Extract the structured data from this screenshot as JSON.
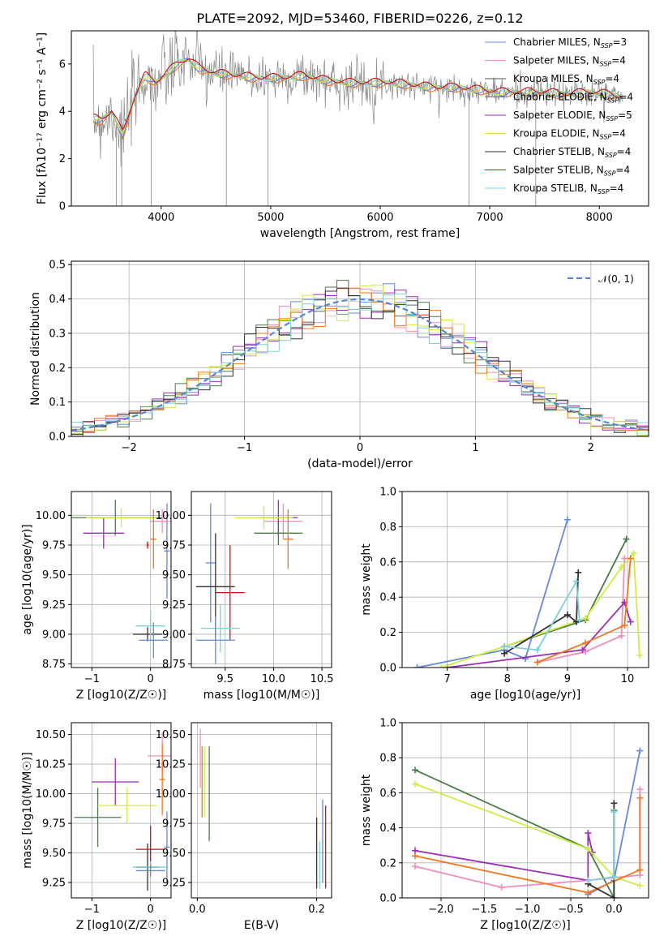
{
  "colors": [
    "#6688dd",
    "#ee8fbb",
    "#555555",
    "#4a7a4a",
    "#9b2eb5",
    "#ccee44",
    "#333333",
    "#cc1111",
    "#7fd0d8",
    "#ee7722"
  ],
  "chart_data": [
    {
      "id": "spectrum",
      "type": "line",
      "title": "PLATE=2092, MJD=53460, FIBERID=0226, z=0.12",
      "xlabel": "wavelength [Angstrom, rest frame]",
      "ylabel": "Flux [fλ10⁻¹⁷ erg cm⁻² s⁻¹ A⁻¹]",
      "xlim": [
        3180,
        8450
      ],
      "ylim": [
        0,
        7.4
      ],
      "xticks": [
        4000,
        5000,
        6000,
        7000,
        8000
      ],
      "yticks": [
        0,
        2,
        4,
        6
      ],
      "data_wavelength": [
        3380,
        3450,
        3550,
        3650,
        3750,
        3850,
        3950,
        4050,
        4150,
        4250,
        4350,
        4500,
        4700,
        4900,
        5100,
        5300,
        5500,
        5700,
        5900,
        6100,
        6300,
        6500,
        6700,
        6900,
        7100,
        7300,
        7500,
        7700,
        7900,
        8100,
        8200
      ],
      "data_flux": [
        3.7,
        3.6,
        4.0,
        3.0,
        4.5,
        5.5,
        5.2,
        5.6,
        6.0,
        6.2,
        5.8,
        5.6,
        5.5,
        5.4,
        5.4,
        5.5,
        5.3,
        5.2,
        5.2,
        5.2,
        5.1,
        5.0,
        5.0,
        4.9,
        4.8,
        4.8,
        4.8,
        4.7,
        4.8,
        4.7,
        4.6
      ],
      "models": [
        {
          "name": "Chabrier MILES, NSSP=3",
          "base": "Chabrier MILES, N",
          "sub": "SSP",
          "suffix": "=3"
        },
        {
          "name": "Salpeter MILES, NSSP=4",
          "base": "Salpeter MILES, N",
          "sub": "SSP",
          "suffix": "=4"
        },
        {
          "name": "Kroupa MILES, NSSP=4",
          "base": "Kroupa MILES, N",
          "sub": "SSP",
          "suffix": "=4"
        },
        {
          "name": "Chabrier ELODIE, NSSP=4",
          "base": "Chabrier ELODIE, N",
          "sub": "SSP",
          "suffix": "=4"
        },
        {
          "name": "Salpeter ELODIE, NSSP=5",
          "base": "Salpeter ELODIE, N",
          "sub": "SSP",
          "suffix": "=5"
        },
        {
          "name": "Kroupa ELODIE, NSSP=4",
          "base": "Kroupa ELODIE, N",
          "sub": "SSP",
          "suffix": "=4"
        },
        {
          "name": "Chabrier STELIB, NSSP=4",
          "base": "Chabrier STELIB, N",
          "sub": "SSP",
          "suffix": "=4"
        },
        {
          "name": "Salpeter STELIB, NSSP=4",
          "base": "Salpeter STELIB, N",
          "sub": "SSP",
          "suffix": "=4"
        },
        {
          "name": "Kroupa STELIB, NSSP=4",
          "base": "Kroupa STELIB, N",
          "sub": "SSP",
          "suffix": "=4"
        }
      ]
    },
    {
      "id": "residuals",
      "type": "histogram",
      "xlabel": "(data-model)/error",
      "ylabel": "Normed distribution",
      "xlim": [
        -2.5,
        2.5
      ],
      "ylim": [
        0,
        0.51
      ],
      "xticks": [
        -2,
        -1,
        0,
        1,
        2
      ],
      "yticks": [
        0.0,
        0.1,
        0.2,
        0.3,
        0.4,
        0.5
      ],
      "legend": "𝒩(0, 1)",
      "bin_width": 0.1
    },
    {
      "id": "z-vs-age",
      "type": "errorbar",
      "xlabel": "Z [log10(Z/Z☉)]",
      "ylabel": "age  [log10(age/yr)]",
      "xlim": [
        -1.35,
        0.35
      ],
      "ylim": [
        8.72,
        10.2
      ],
      "xticks": [
        -1,
        0
      ],
      "yticks": [
        8.75,
        9.0,
        9.25,
        9.5,
        9.75,
        10.0
      ],
      "points": [
        {
          "x": 0.28,
          "y": 9.7,
          "xerr": 0.05,
          "yerr": 0.4,
          "c": 0
        },
        {
          "x": 0.2,
          "y": 9.95,
          "xerr": 0.2,
          "yerr": 0.1,
          "c": 1
        },
        {
          "x": -0.6,
          "y": 9.98,
          "xerr": 0.8,
          "yerr": 0.15,
          "c": 3
        },
        {
          "x": -0.8,
          "y": 9.85,
          "xerr": 0.35,
          "yerr": 0.13,
          "c": 4
        },
        {
          "x": -0.5,
          "y": 9.98,
          "xerr": 0.6,
          "yerr": 0.08,
          "c": 5
        },
        {
          "x": 0.05,
          "y": 9.8,
          "xerr": 0.05,
          "yerr": 0.25,
          "c": 9
        },
        {
          "x": -0.05,
          "y": 9.0,
          "xerr": 0.25,
          "yerr": 0.06,
          "c": 6
        },
        {
          "x": -0.05,
          "y": 9.75,
          "xerr": 0.02,
          "yerr": 0.03,
          "c": 7
        },
        {
          "x": 0.0,
          "y": 9.07,
          "xerr": 0.25,
          "yerr": 0.13,
          "c": 8
        },
        {
          "x": 0.05,
          "y": 8.95,
          "xerr": 0.25,
          "yerr": 0.15,
          "c": 0
        }
      ]
    },
    {
      "id": "mass-vs-age",
      "type": "errorbar",
      "xlabel": "mass [log10(M/M☉)]",
      "ylabel": "",
      "xlim": [
        9.15,
        10.6
      ],
      "ylim": [
        8.72,
        10.2
      ],
      "xticks": [
        9.5,
        10.0,
        10.5
      ],
      "yticks": [
        8.75,
        9.0,
        9.25,
        9.5,
        9.75,
        10.0
      ],
      "points": [
        {
          "x": 9.35,
          "y": 9.6,
          "xerr": 0.05,
          "yerr": 0.5,
          "c": 0
        },
        {
          "x": 10.1,
          "y": 9.95,
          "xerr": 0.2,
          "yerr": 0.15,
          "c": 1
        },
        {
          "x": 10.05,
          "y": 9.85,
          "xerr": 0.25,
          "yerr": 0.1,
          "c": 3
        },
        {
          "x": 10.05,
          "y": 9.98,
          "xerr": 0.2,
          "yerr": 0.15,
          "c": 4
        },
        {
          "x": 9.9,
          "y": 9.98,
          "xerr": 0.3,
          "yerr": 0.1,
          "c": 5
        },
        {
          "x": 10.15,
          "y": 9.8,
          "xerr": 0.05,
          "yerr": 0.25,
          "c": 9
        },
        {
          "x": 9.4,
          "y": 9.4,
          "xerr": 0.2,
          "yerr": 0.45,
          "c": 6
        },
        {
          "x": 9.55,
          "y": 9.35,
          "xerr": 0.15,
          "yerr": 0.4,
          "c": 7
        },
        {
          "x": 9.45,
          "y": 9.05,
          "xerr": 0.2,
          "yerr": 0.2,
          "c": 8
        },
        {
          "x": 9.4,
          "y": 8.95,
          "xerr": 0.2,
          "yerr": 0.2,
          "c": 0
        }
      ]
    },
    {
      "id": "weight-vs-age",
      "type": "line",
      "xlabel": "age  [log10(age/yr)]",
      "ylabel": "mass weight",
      "xlim": [
        6.25,
        10.35
      ],
      "ylim": [
        0,
        1.0
      ],
      "xticks": [
        7,
        8,
        9,
        10
      ],
      "yticks": [
        0.0,
        0.2,
        0.4,
        0.6,
        0.8,
        1.0
      ],
      "series": [
        {
          "c": 0,
          "x": [
            6.5,
            7.95,
            8.3,
            9.0
          ],
          "y": [
            0.0,
            0.1,
            0.05,
            0.84
          ]
        },
        {
          "c": 1,
          "x": [
            8.5,
            9.3,
            9.9,
            9.95
          ],
          "y": [
            0.03,
            0.09,
            0.18,
            0.62
          ]
        },
        {
          "c": 3,
          "x": [
            7.95,
            9.3,
            9.98
          ],
          "y": [
            0.12,
            0.27,
            0.73
          ]
        },
        {
          "c": 4,
          "x": [
            7.0,
            9.25,
            9.95,
            10.05
          ],
          "y": [
            0.0,
            0.1,
            0.37,
            0.26
          ]
        },
        {
          "c": 5,
          "x": [
            6.9,
            7.95,
            9.3,
            9.9,
            10.1,
            10.2
          ],
          "y": [
            0.0,
            0.12,
            0.28,
            0.57,
            0.65,
            0.07
          ]
        },
        {
          "c": 9,
          "x": [
            8.5,
            9.3,
            9.95,
            10.05
          ],
          "y": [
            0.03,
            0.14,
            0.24,
            0.62
          ]
        },
        {
          "c": 6,
          "x": [
            7.95,
            9.0,
            9.15,
            9.18
          ],
          "y": [
            0.08,
            0.3,
            0.26,
            0.54
          ]
        },
        {
          "c": 8,
          "x": [
            7.95,
            8.5,
            9.15,
            9.2
          ],
          "y": [
            0.12,
            0.1,
            0.49,
            0.27
          ]
        }
      ]
    },
    {
      "id": "z-vs-mass",
      "type": "errorbar",
      "xlabel": "Z [log10(Z/Z☉)]",
      "ylabel": "mass [log10(M/M☉)]",
      "xlim": [
        -1.35,
        0.35
      ],
      "ylim": [
        9.12,
        10.6
      ],
      "xticks": [
        -1,
        0
      ],
      "yticks": [
        9.25,
        9.5,
        9.75,
        10.0,
        10.25,
        10.5
      ],
      "points": [
        {
          "x": 0.28,
          "y": 9.55,
          "xerr": 0.05,
          "yerr": 0.3,
          "c": 0
        },
        {
          "x": 0.2,
          "y": 10.32,
          "xerr": 0.25,
          "yerr": 0.2,
          "c": 1
        },
        {
          "x": -0.9,
          "y": 9.8,
          "xerr": 0.4,
          "yerr": 0.25,
          "c": 3
        },
        {
          "x": -0.6,
          "y": 10.1,
          "xerr": 0.4,
          "yerr": 0.2,
          "c": 4
        },
        {
          "x": -0.4,
          "y": 9.9,
          "xerr": 0.5,
          "yerr": 0.15,
          "c": 5
        },
        {
          "x": 0.2,
          "y": 10.12,
          "xerr": 0.05,
          "yerr": 0.3,
          "c": 9
        },
        {
          "x": -0.05,
          "y": 9.38,
          "xerr": 0.2,
          "yerr": 0.2,
          "c": 6
        },
        {
          "x": 0.0,
          "y": 9.53,
          "xerr": 0.25,
          "yerr": 0.2,
          "c": 7
        },
        {
          "x": 0.0,
          "y": 9.38,
          "xerr": 0.3,
          "yerr": 0.05,
          "c": 8
        },
        {
          "x": 0.0,
          "y": 9.35,
          "xerr": 0.25,
          "yerr": 0.05,
          "c": 0
        }
      ]
    },
    {
      "id": "ebv-vs-mass",
      "type": "errorbar",
      "xlabel": "E(B-V)",
      "ylabel": "",
      "xlim": [
        -0.01,
        0.225
      ],
      "ylim": [
        9.12,
        10.6
      ],
      "xticks": [
        0.0,
        0.2
      ],
      "yticks": [
        9.25,
        9.5,
        9.75,
        10.0,
        10.25,
        10.5
      ],
      "points": [
        {
          "x": 0.005,
          "y": 10.3,
          "xerr": 0,
          "yerr": 0.25,
          "c": 1
        },
        {
          "x": 0.008,
          "y": 10.1,
          "xerr": 0,
          "yerr": 0.3,
          "c": 9
        },
        {
          "x": 0.012,
          "y": 10.1,
          "xerr": 0,
          "yerr": 0.3,
          "c": 5
        },
        {
          "x": 0.02,
          "y": 10.0,
          "xerr": 0,
          "yerr": 0.4,
          "c": 3
        },
        {
          "x": 0.2,
          "y": 9.5,
          "xerr": 0,
          "yerr": 0.3,
          "c": 6
        },
        {
          "x": 0.21,
          "y": 9.6,
          "xerr": 0,
          "yerr": 0.35,
          "c": 0
        },
        {
          "x": 0.215,
          "y": 9.55,
          "xerr": 0,
          "yerr": 0.35,
          "c": 7
        },
        {
          "x": 0.205,
          "y": 9.4,
          "xerr": 0,
          "yerr": 0.2,
          "c": 8
        }
      ]
    },
    {
      "id": "weight-vs-z",
      "type": "line",
      "xlabel": "Z [log10(Z/Z☉)]",
      "ylabel": "mass weight",
      "xlim": [
        -2.45,
        0.4
      ],
      "ylim": [
        0,
        1.0
      ],
      "xticks": [
        -2.0,
        -1.5,
        -1.0,
        -0.5,
        0.0
      ],
      "yticks": [
        0.0,
        0.2,
        0.4,
        0.6,
        0.8,
        1.0
      ],
      "series": [
        {
          "c": 0,
          "x": [
            -0.3,
            0.0,
            0.3
          ],
          "y": [
            0.02,
            0.1,
            0.84
          ]
        },
        {
          "c": 1,
          "x": [
            -2.3,
            -1.3,
            -0.3,
            0.3,
            0.3
          ],
          "y": [
            0.18,
            0.06,
            0.1,
            0.13,
            0.62
          ]
        },
        {
          "c": 3,
          "x": [
            -2.3,
            -0.3,
            0.0,
            0.0
          ],
          "y": [
            0.73,
            0.28,
            0.0,
            0.5
          ]
        },
        {
          "c": 4,
          "x": [
            -2.3,
            -0.3,
            -0.3,
            -0.25
          ],
          "y": [
            0.27,
            0.1,
            0.37,
            0.26
          ]
        },
        {
          "c": 5,
          "x": [
            -2.3,
            -0.3,
            0.0,
            0.3
          ],
          "y": [
            0.65,
            0.28,
            0.12,
            0.07
          ]
        },
        {
          "c": 9,
          "x": [
            -2.3,
            -0.3,
            0.3,
            0.3
          ],
          "y": [
            0.24,
            0.03,
            0.16,
            0.57
          ]
        },
        {
          "c": 6,
          "x": [
            -0.3,
            0.0,
            0.0
          ],
          "y": [
            0.08,
            0.0,
            0.54
          ]
        },
        {
          "c": 8,
          "x": [
            -0.3,
            0.0,
            0.0
          ],
          "y": [
            0.1,
            0.12,
            0.49
          ]
        }
      ]
    }
  ]
}
